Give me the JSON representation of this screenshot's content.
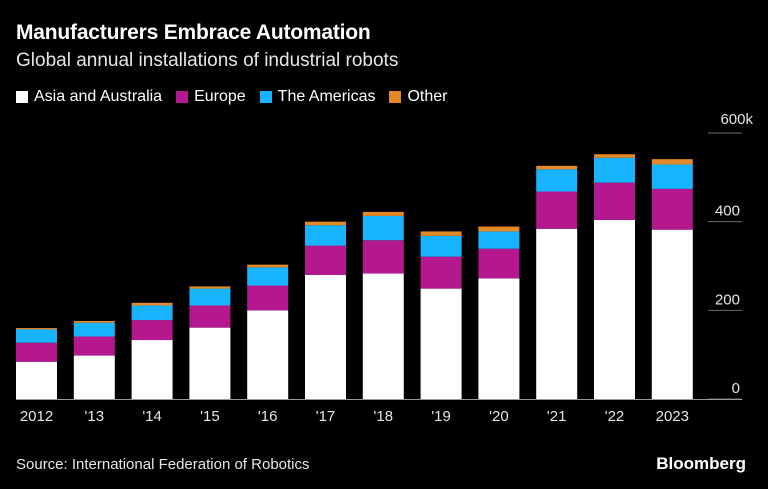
{
  "title": "Manufacturers Embrace Automation",
  "subtitle": "Global annual installations of industrial robots",
  "legend": [
    {
      "label": "Asia and Australia",
      "color": "#ffffff"
    },
    {
      "label": "Europe",
      "color": "#b5178f"
    },
    {
      "label": "The Americas",
      "color": "#19b4ff"
    },
    {
      "label": "Other",
      "color": "#e38a26"
    }
  ],
  "source": "Source: International Federation of Robotics",
  "brand": "Bloomberg",
  "chart_data": {
    "type": "bar",
    "stacked": true,
    "categories": [
      "2012",
      "'13",
      "'14",
      "'15",
      "'16",
      "'17",
      "'18",
      "'19",
      "'20",
      "'21",
      "'22",
      "2023"
    ],
    "series": [
      {
        "name": "Asia and Australia",
        "color": "#ffffff",
        "values": [
          84,
          98,
          133,
          161,
          200,
          280,
          283,
          249,
          272,
          384,
          404,
          382
        ]
      },
      {
        "name": "Europe",
        "color": "#b5178f",
        "values": [
          43,
          43,
          45,
          50,
          56,
          66,
          75,
          72,
          67,
          84,
          84,
          92
        ]
      },
      {
        "name": "The Americas",
        "color": "#19b4ff",
        "values": [
          30,
          31,
          33,
          38,
          41,
          46,
          55,
          47,
          39,
          50,
          56,
          55
        ]
      },
      {
        "name": "Other",
        "color": "#e38a26",
        "values": [
          3,
          4,
          6,
          5,
          6,
          8,
          9,
          10,
          11,
          8,
          8,
          12
        ]
      }
    ],
    "yticks": [
      0,
      200,
      400
    ],
    "ytick_labels": [
      "0",
      "200",
      "400"
    ],
    "ytop_label": "600k",
    "ylim": [
      0,
      600
    ],
    "grid": true,
    "legend_position": "top-left"
  }
}
